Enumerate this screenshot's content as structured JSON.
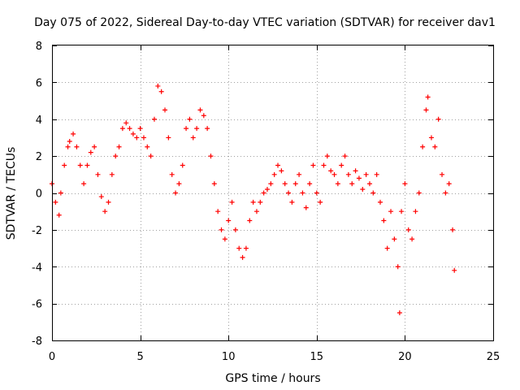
{
  "chart_data": {
    "type": "scatter",
    "title": "Day 075 of 2022, Sidereal Day-to-day VTEC variation (SDTVAR) for receiver dav1",
    "xlabel": "GPS time / hours",
    "ylabel": "SDTVAR / TECUs",
    "xlim": [
      0,
      25
    ],
    "ylim": [
      -8,
      8
    ],
    "xticks": [
      0,
      5,
      10,
      15,
      20,
      25
    ],
    "yticks": [
      -8,
      -6,
      -4,
      -2,
      0,
      2,
      4,
      6,
      8
    ],
    "grid": true,
    "marker": "+",
    "series": [
      {
        "name": "SDTVAR",
        "color": "#ff0000",
        "x": [
          0.0,
          0.2,
          0.4,
          0.5,
          0.7,
          0.9,
          1.0,
          1.2,
          1.4,
          1.6,
          1.8,
          2.0,
          2.2,
          2.4,
          2.6,
          2.8,
          3.0,
          3.2,
          3.4,
          3.6,
          3.8,
          4.0,
          4.2,
          4.4,
          4.6,
          4.8,
          5.0,
          5.2,
          5.4,
          5.6,
          5.8,
          6.0,
          6.2,
          6.4,
          6.6,
          6.8,
          7.0,
          7.2,
          7.4,
          7.6,
          7.8,
          8.0,
          8.2,
          8.4,
          8.6,
          8.8,
          9.0,
          9.2,
          9.4,
          9.6,
          9.8,
          10.0,
          10.2,
          10.4,
          10.6,
          10.8,
          11.0,
          11.2,
          11.4,
          11.6,
          11.8,
          12.0,
          12.2,
          12.4,
          12.6,
          12.8,
          13.0,
          13.2,
          13.4,
          13.6,
          13.8,
          14.0,
          14.2,
          14.4,
          14.6,
          14.8,
          15.0,
          15.2,
          15.4,
          15.6,
          15.8,
          16.0,
          16.2,
          16.4,
          16.6,
          16.8,
          17.0,
          17.2,
          17.4,
          17.6,
          17.8,
          18.0,
          18.2,
          18.4,
          18.6,
          18.8,
          19.0,
          19.2,
          19.4,
          19.6,
          19.7,
          19.8,
          20.0,
          20.2,
          20.4,
          20.6,
          20.8,
          21.0,
          21.2,
          21.3,
          21.5,
          21.7,
          21.9,
          22.1,
          22.3,
          22.5,
          22.7,
          22.8
        ],
        "y": [
          0.5,
          -0.5,
          -1.2,
          0.0,
          1.5,
          2.5,
          2.8,
          3.2,
          2.5,
          1.5,
          0.5,
          1.5,
          2.2,
          2.5,
          1.0,
          -0.2,
          -1.0,
          -0.5,
          1.0,
          2.0,
          2.5,
          3.5,
          3.8,
          3.5,
          3.2,
          3.0,
          3.5,
          3.0,
          2.5,
          2.0,
          4.0,
          5.8,
          5.5,
          4.5,
          3.0,
          1.0,
          0.0,
          0.5,
          1.5,
          3.5,
          4.0,
          3.0,
          3.5,
          4.5,
          4.2,
          3.5,
          2.0,
          0.5,
          -1.0,
          -2.0,
          -2.5,
          -1.5,
          -0.5,
          -2.0,
          -3.0,
          -3.5,
          -3.0,
          -1.5,
          -0.5,
          -1.0,
          -0.5,
          0.0,
          0.2,
          0.5,
          1.0,
          1.5,
          1.2,
          0.5,
          0.0,
          -0.5,
          0.5,
          1.0,
          0.0,
          -0.8,
          0.5,
          1.5,
          0.0,
          -0.5,
          1.5,
          2.0,
          1.2,
          1.0,
          0.5,
          1.5,
          2.0,
          1.0,
          0.5,
          1.2,
          0.8,
          0.2,
          1.0,
          0.5,
          0.0,
          1.0,
          -0.5,
          -1.5,
          -3.0,
          -1.0,
          -2.5,
          -4.0,
          -6.5,
          -1.0,
          0.5,
          -2.0,
          -2.5,
          -1.0,
          0.0,
          2.5,
          4.5,
          5.2,
          3.0,
          2.5,
          4.0,
          1.0,
          0.0,
          0.5,
          -2.0,
          -4.2
        ]
      }
    ]
  }
}
